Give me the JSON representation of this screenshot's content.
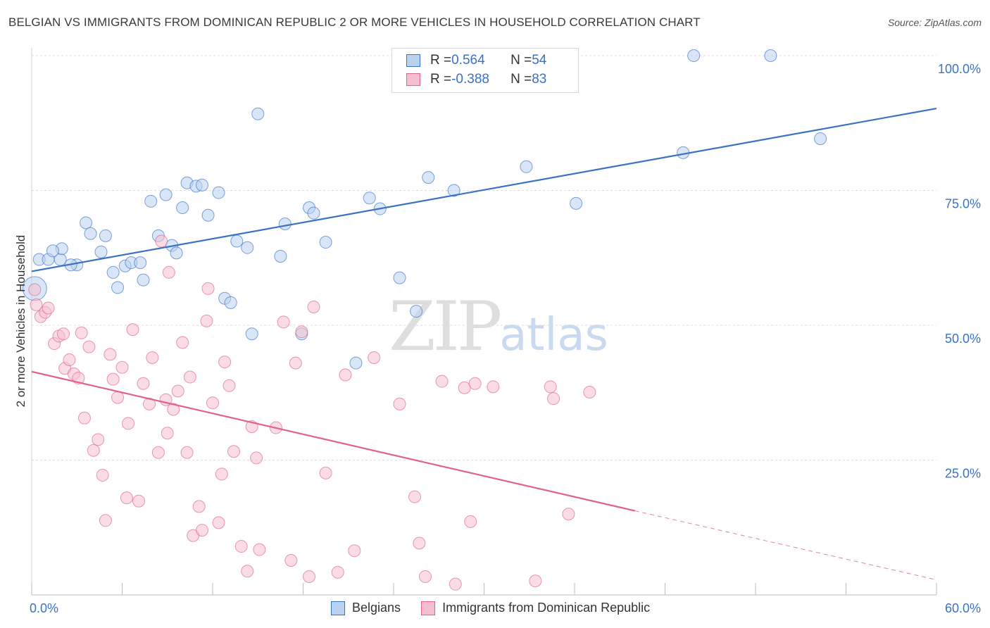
{
  "title": "BELGIAN VS IMMIGRANTS FROM DOMINICAN REPUBLIC 2 OR MORE VEHICLES IN HOUSEHOLD CORRELATION CHART",
  "source": "Source: ZipAtlas.com",
  "watermark": {
    "zip": "ZIP",
    "atlas": "atlas"
  },
  "colors": {
    "blue": "#3a72c4",
    "blue_fill": "#b9d2f0",
    "pink": "#e0628e",
    "pink_fill": "#f5bfd0"
  },
  "legend": {
    "rows": [
      {
        "r_label": "R = ",
        "r_value": "0.564",
        "n_label": "N = ",
        "n_value": "54"
      },
      {
        "r_label": "R = ",
        "r_value": "-0.388",
        "n_label": "N = ",
        "n_value": "83"
      }
    ]
  },
  "chart_data": {
    "type": "scatter",
    "title": "BELGIAN VS IMMIGRANTS FROM DOMINICAN REPUBLIC 2 OR MORE VEHICLES IN HOUSEHOLD CORRELATION CHART",
    "xlabel": "",
    "ylabel": "2 or more Vehicles in Household",
    "xlim": [
      0,
      60
    ],
    "ylim": [
      0,
      100
    ],
    "x_tick_labels": [
      "0.0%",
      "60.0%"
    ],
    "y_tick_labels": [
      {
        "value": 100,
        "label": "100.0%"
      },
      {
        "value": 75,
        "label": "75.0%"
      },
      {
        "value": 50,
        "label": "50.0%"
      },
      {
        "value": 25,
        "label": "25.0%"
      }
    ],
    "grid": true,
    "legend_position": "bottom",
    "series": [
      {
        "name": "Belgians",
        "color": "#3a72c4",
        "r": 0.564,
        "n": 54,
        "trend": {
          "x": [
            0,
            60
          ],
          "y": [
            60.0,
            90.2
          ]
        },
        "points": [
          [
            0.2,
            56.8
          ],
          [
            0.5,
            62.2
          ],
          [
            1.1,
            62.2
          ],
          [
            1.9,
            62.2
          ],
          [
            2.0,
            64.2
          ],
          [
            1.4,
            63.8
          ],
          [
            3.0,
            61.2
          ],
          [
            2.6,
            61.2
          ],
          [
            3.6,
            69.0
          ],
          [
            3.9,
            67.0
          ],
          [
            4.6,
            63.6
          ],
          [
            4.9,
            66.6
          ],
          [
            5.4,
            59.8
          ],
          [
            5.7,
            57.0
          ],
          [
            6.2,
            61.0
          ],
          [
            6.6,
            61.6
          ],
          [
            7.2,
            61.6
          ],
          [
            7.4,
            58.4
          ],
          [
            7.9,
            73.0
          ],
          [
            8.4,
            66.6
          ],
          [
            8.9,
            74.2
          ],
          [
            9.3,
            64.8
          ],
          [
            9.6,
            63.4
          ],
          [
            10.0,
            71.8
          ],
          [
            10.3,
            76.4
          ],
          [
            10.9,
            75.8
          ],
          [
            11.3,
            76.0
          ],
          [
            11.7,
            70.4
          ],
          [
            12.4,
            74.6
          ],
          [
            12.8,
            55.0
          ],
          [
            13.2,
            54.2
          ],
          [
            13.6,
            65.6
          ],
          [
            14.3,
            64.4
          ],
          [
            14.6,
            48.4
          ],
          [
            15.0,
            89.2
          ],
          [
            16.5,
            62.8
          ],
          [
            16.8,
            68.8
          ],
          [
            17.9,
            48.4
          ],
          [
            18.4,
            71.8
          ],
          [
            18.7,
            70.8
          ],
          [
            19.5,
            65.4
          ],
          [
            21.5,
            43.0
          ],
          [
            22.4,
            73.6
          ],
          [
            23.1,
            71.6
          ],
          [
            24.4,
            58.8
          ],
          [
            25.5,
            52.6
          ],
          [
            26.3,
            77.4
          ],
          [
            28.0,
            75.0
          ],
          [
            32.8,
            79.4
          ],
          [
            36.1,
            72.6
          ],
          [
            43.2,
            82.0
          ],
          [
            43.9,
            100.0
          ],
          [
            49.0,
            100.0
          ],
          [
            52.3,
            84.6
          ]
        ]
      },
      {
        "name": "Immigrants from Dominican Republic",
        "color": "#e0628e",
        "r": -0.388,
        "n": 83,
        "trend": {
          "x": [
            0,
            40.0
          ],
          "y": [
            41.4,
            15.6
          ]
        },
        "trend_dashed": {
          "x": [
            40.0,
            60
          ],
          "y": [
            15.6,
            2.8
          ]
        },
        "points": [
          [
            0.2,
            56.6
          ],
          [
            0.3,
            53.8
          ],
          [
            0.6,
            51.6
          ],
          [
            0.9,
            52.4
          ],
          [
            1.1,
            53.2
          ],
          [
            1.5,
            46.6
          ],
          [
            1.8,
            48.0
          ],
          [
            2.1,
            48.4
          ],
          [
            2.2,
            42.0
          ],
          [
            2.5,
            43.6
          ],
          [
            2.8,
            41.0
          ],
          [
            3.1,
            40.2
          ],
          [
            3.3,
            48.6
          ],
          [
            3.5,
            32.8
          ],
          [
            3.8,
            46.0
          ],
          [
            4.1,
            26.8
          ],
          [
            4.4,
            28.8
          ],
          [
            4.7,
            22.2
          ],
          [
            4.9,
            13.8
          ],
          [
            5.2,
            44.6
          ],
          [
            5.4,
            40.0
          ],
          [
            5.7,
            36.6
          ],
          [
            6.0,
            42.2
          ],
          [
            6.3,
            18.0
          ],
          [
            6.4,
            31.8
          ],
          [
            6.7,
            49.2
          ],
          [
            7.1,
            17.4
          ],
          [
            7.4,
            39.2
          ],
          [
            7.8,
            35.4
          ],
          [
            8.0,
            44.0
          ],
          [
            8.4,
            26.4
          ],
          [
            8.6,
            65.6
          ],
          [
            8.9,
            36.2
          ],
          [
            9.0,
            30.0
          ],
          [
            9.1,
            59.8
          ],
          [
            9.4,
            34.4
          ],
          [
            9.7,
            37.8
          ],
          [
            10.0,
            46.8
          ],
          [
            10.3,
            26.4
          ],
          [
            10.5,
            40.4
          ],
          [
            10.7,
            11.0
          ],
          [
            11.1,
            16.4
          ],
          [
            11.3,
            12.0
          ],
          [
            11.6,
            50.8
          ],
          [
            11.7,
            56.8
          ],
          [
            12.0,
            35.6
          ],
          [
            12.4,
            13.4
          ],
          [
            12.6,
            22.4
          ],
          [
            12.8,
            43.2
          ],
          [
            13.1,
            38.8
          ],
          [
            13.4,
            26.6
          ],
          [
            13.9,
            9.0
          ],
          [
            14.3,
            4.4
          ],
          [
            14.6,
            31.2
          ],
          [
            14.9,
            25.4
          ],
          [
            15.1,
            8.4
          ],
          [
            16.2,
            31.0
          ],
          [
            16.7,
            50.6
          ],
          [
            17.2,
            6.4
          ],
          [
            17.5,
            43.0
          ],
          [
            17.9,
            48.8
          ],
          [
            18.4,
            3.4
          ],
          [
            18.7,
            53.4
          ],
          [
            19.5,
            22.6
          ],
          [
            20.3,
            4.2
          ],
          [
            20.8,
            40.8
          ],
          [
            21.4,
            8.2
          ],
          [
            22.7,
            44.0
          ],
          [
            24.4,
            35.4
          ],
          [
            25.4,
            18.2
          ],
          [
            25.7,
            9.6
          ],
          [
            26.1,
            3.4
          ],
          [
            27.2,
            39.6
          ],
          [
            28.1,
            2.0
          ],
          [
            28.7,
            38.4
          ],
          [
            29.1,
            13.6
          ],
          [
            29.4,
            39.2
          ],
          [
            30.6,
            38.6
          ],
          [
            33.4,
            2.6
          ],
          [
            34.4,
            38.6
          ],
          [
            34.6,
            36.4
          ],
          [
            35.6,
            15.0
          ],
          [
            37.0,
            37.6
          ]
        ]
      }
    ]
  }
}
